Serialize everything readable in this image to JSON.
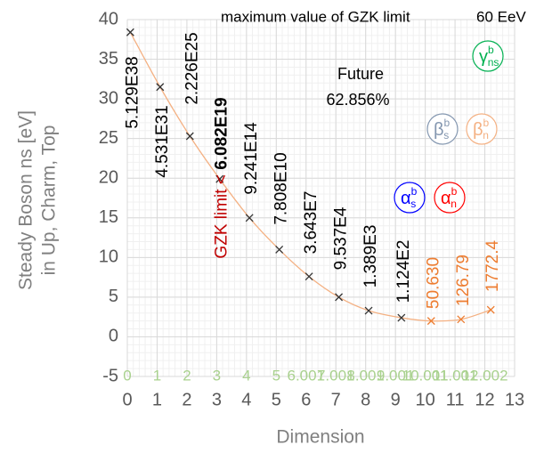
{
  "chart_data": {
    "type": "scatter",
    "title": "maximum value of GZK limit",
    "title_value": "60 EeV",
    "annotation": {
      "line1": "Future",
      "line2": "62.856%"
    },
    "xlabel": "Dimension",
    "ylabel": [
      "Steady Boson ns [eV]",
      "in Up, Charm, Top"
    ],
    "xlim": [
      0,
      13
    ],
    "ylim": [
      -5,
      40
    ],
    "xticks": [
      0,
      1,
      2,
      3,
      4,
      5,
      6,
      7,
      8,
      9,
      10,
      11,
      12,
      13
    ],
    "yticks": [
      -5,
      0,
      5,
      10,
      15,
      20,
      25,
      30,
      35,
      40
    ],
    "grid": true,
    "series": [
      {
        "x": [
          0.1,
          1.1,
          2.1,
          3.1,
          4.1,
          5.1,
          6.1,
          7.1,
          8.1,
          9.2,
          10.2,
          11.2,
          12.2
        ],
        "values": [
          38.4,
          31.5,
          25.3,
          19.9,
          15.0,
          11.0,
          7.6,
          5.0,
          3.3,
          2.4,
          2.0,
          2.2,
          3.4
        ],
        "marker_colors": [
          "#333333",
          "#333333",
          "#333333",
          "#333333",
          "#333333",
          "#333333",
          "#333333",
          "#333333",
          "#333333",
          "#333333",
          "#ed7d31",
          "#ed7d31",
          "#ed7d31"
        ],
        "value_labels": [
          "5.129E38",
          "4.531E31",
          "2.226E25",
          "6.082E19",
          "9.241E14",
          "7.808E10",
          "3.643E7",
          "9.537E4",
          "1.389E3",
          "1.124E2",
          "50.630",
          "126.79",
          "1772.4"
        ],
        "label_colors": [
          "#000000",
          "#000000",
          "#000000",
          "#000000",
          "#000000",
          "#000000",
          "#000000",
          "#000000",
          "#000000",
          "#000000",
          "#ed7d31",
          "#ed7d31",
          "#ed7d31"
        ]
      }
    ],
    "trend_color": "#f4b183",
    "gzk_prefix": "GZK limit <",
    "bottom_labels": {
      "x": [
        0,
        1,
        2,
        3,
        4,
        5,
        6,
        7,
        8,
        9,
        10,
        11,
        12
      ],
      "labels": [
        "0",
        "1",
        "2",
        "3",
        "4",
        "5",
        "6.001",
        "7.001",
        "8.001",
        "9.001",
        "10.001",
        "11.001",
        "12.002"
      ],
      "color": "#a9d18e"
    },
    "badges": [
      {
        "base": "α",
        "sub": "s",
        "sup": "b",
        "color": "#0000ff"
      },
      {
        "base": "α",
        "sub": "n",
        "sup": "b",
        "color": "#ff0000"
      },
      {
        "base": "β",
        "sub": "s",
        "sup": "b",
        "color": "#8497b0"
      },
      {
        "base": "β",
        "sub": "n",
        "sup": "b",
        "color": "#f4b183"
      },
      {
        "base": "γ",
        "sub": "ns",
        "sup": "b",
        "color": "#00b050"
      }
    ]
  }
}
